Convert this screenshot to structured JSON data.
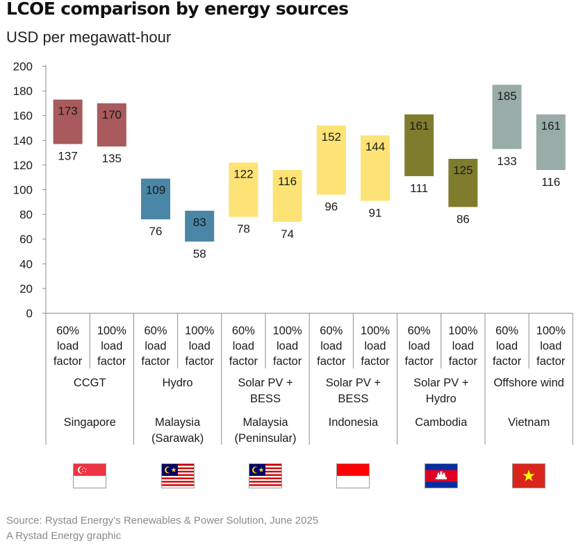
{
  "title": "LCOE comparison by energy sources",
  "subtitle": "USD per megawatt-hour",
  "chart_data": {
    "type": "range-bar",
    "ylim": [
      0,
      200
    ],
    "yticks": [
      0,
      20,
      40,
      60,
      80,
      100,
      120,
      140,
      160,
      180,
      200
    ],
    "grid": false,
    "bars": [
      {
        "sub_label": "60%\nload\nfactor",
        "group": 0,
        "low": 137,
        "high": 173
      },
      {
        "sub_label": "100%\nload\nfactor",
        "group": 0,
        "low": 135,
        "high": 170
      },
      {
        "sub_label": "60%\nload\nfactor",
        "group": 1,
        "low": 76,
        "high": 109
      },
      {
        "sub_label": "100%\nload\nfactor",
        "group": 1,
        "low": 58,
        "high": 83
      },
      {
        "sub_label": "60%\nload\nfactor",
        "group": 2,
        "low": 78,
        "high": 122
      },
      {
        "sub_label": "100%\nload\nfactor",
        "group": 2,
        "low": 74,
        "high": 116
      },
      {
        "sub_label": "60%\nload\nfactor",
        "group": 3,
        "low": 96,
        "high": 152
      },
      {
        "sub_label": "100%\nload\nfactor",
        "group": 3,
        "low": 91,
        "high": 144
      },
      {
        "sub_label": "60%\nload\nfactor",
        "group": 4,
        "low": 111,
        "high": 161
      },
      {
        "sub_label": "100%\nload\nfactor",
        "group": 4,
        "low": 86,
        "high": 125
      },
      {
        "sub_label": "60%\nload\nfactor",
        "group": 5,
        "low": 133,
        "high": 185
      },
      {
        "sub_label": "100%\nload\nfactor",
        "group": 5,
        "low": 116,
        "high": 161
      }
    ],
    "groups": [
      {
        "technology": "CCGT",
        "country": "Singapore",
        "color": "#a85a5c",
        "text_color": "#1a1a1a",
        "flag": "singapore-flag"
      },
      {
        "technology": "Hydro",
        "country": "Malaysia\n(Sarawak)",
        "color": "#4a86a6",
        "text_color": "#1a1a1a",
        "flag": "malaysia-flag"
      },
      {
        "technology": "Solar PV +\nBESS",
        "country": "Malaysia\n(Peninsular)",
        "color": "#fde375",
        "text_color": "#1a1a1a",
        "flag": "malaysia-flag"
      },
      {
        "technology": "Solar PV +\nBESS",
        "country": "Indonesia",
        "color": "#fde375",
        "text_color": "#1a1a1a",
        "flag": "indonesia-flag"
      },
      {
        "technology": "Solar PV +\nHydro",
        "country": "Cambodia",
        "color": "#7f7c2e",
        "text_color": "#1a1a1a",
        "flag": "cambodia-flag"
      },
      {
        "technology": "Offshore wind",
        "country": "Vietnam",
        "color": "#9aaca8",
        "text_color": "#1a1a1a",
        "flag": "vietnam-flag"
      }
    ]
  },
  "footer": {
    "source": "Source: Rystad Energy’s Renewables & Power Solution, June 2025",
    "credit": "A Rystad Energy graphic"
  }
}
